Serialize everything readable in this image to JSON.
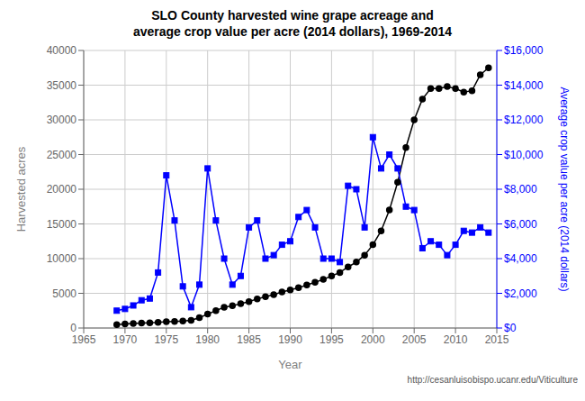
{
  "chart_data": {
    "type": "line",
    "title": "SLO County harvested wine grape acreage and\naverage crop value per acre (2014 dollars), 1969-2014",
    "xlabel": "Year",
    "ylabel": "Harvested acres",
    "y2label": "Average crop value per acre (2014 dollars)",
    "annotations": [
      "http://cesanluisobispo.ucanr.edu/Viticulture"
    ],
    "x": [
      1969,
      1970,
      1971,
      1972,
      1973,
      1974,
      1975,
      1976,
      1977,
      1978,
      1979,
      1980,
      1981,
      1982,
      1983,
      1984,
      1985,
      1986,
      1987,
      1988,
      1989,
      1990,
      1991,
      1992,
      1993,
      1994,
      1995,
      1996,
      1997,
      1998,
      1999,
      2000,
      2001,
      2002,
      2003,
      2004,
      2005,
      2006,
      2007,
      2008,
      2009,
      2010,
      2011,
      2012,
      2013,
      2014
    ],
    "series": [
      {
        "color": "black",
        "marker": "circle",
        "values": [
          500,
          600,
          650,
          700,
          750,
          800,
          900,
          950,
          1000,
          1100,
          1500,
          2000,
          2500,
          3000,
          3200,
          3500,
          3800,
          4200,
          4500,
          4800,
          5200,
          5500,
          5800,
          6200,
          6600,
          7000,
          7500,
          8000,
          8800,
          9500,
          10500,
          12000,
          14000,
          17000,
          21000,
          26000,
          30000,
          33000,
          34500,
          34500,
          34800,
          34500,
          34000,
          34200,
          36500,
          37500
        ]
      },
      {
        "color": "blue",
        "marker": "square",
        "axis": "y2",
        "values": [
          1000,
          1100,
          1300,
          1600,
          1700,
          3200,
          8800,
          6200,
          2400,
          1200,
          2500,
          9200,
          6200,
          4000,
          2500,
          3000,
          5800,
          6200,
          4000,
          4200,
          4800,
          5000,
          6400,
          6800,
          5800,
          4000,
          4000,
          3800,
          8200,
          8000,
          5800,
          11000,
          9200,
          10000,
          9200,
          7000,
          6800,
          4600,
          5000,
          4800,
          4200,
          4800,
          5600,
          5500,
          5800,
          5500
        ]
      }
    ],
    "xlim": [
      1965,
      2015
    ],
    "xticks": [
      1965,
      1970,
      1975,
      1980,
      1985,
      1990,
      1995,
      2000,
      2005,
      2010,
      2015
    ],
    "ylim": [
      0,
      40000
    ],
    "yticks": [
      0,
      5000,
      10000,
      15000,
      20000,
      25000,
      30000,
      35000,
      40000
    ],
    "y2lim": [
      0,
      16000
    ],
    "y2ticks": [
      {
        "value": 0,
        "label": "$0"
      },
      {
        "value": 2000,
        "label": "$2,000"
      },
      {
        "value": 4000,
        "label": "$4,000"
      },
      {
        "value": 6000,
        "label": "$6,000"
      },
      {
        "value": 8000,
        "label": "$8,000"
      },
      {
        "value": 10000,
        "label": "$10,000"
      },
      {
        "value": 12000,
        "label": "$12,000"
      },
      {
        "value": 14000,
        "label": "$14,000"
      },
      {
        "value": 16000,
        "label": "$16,000"
      }
    ],
    "grid": true
  }
}
